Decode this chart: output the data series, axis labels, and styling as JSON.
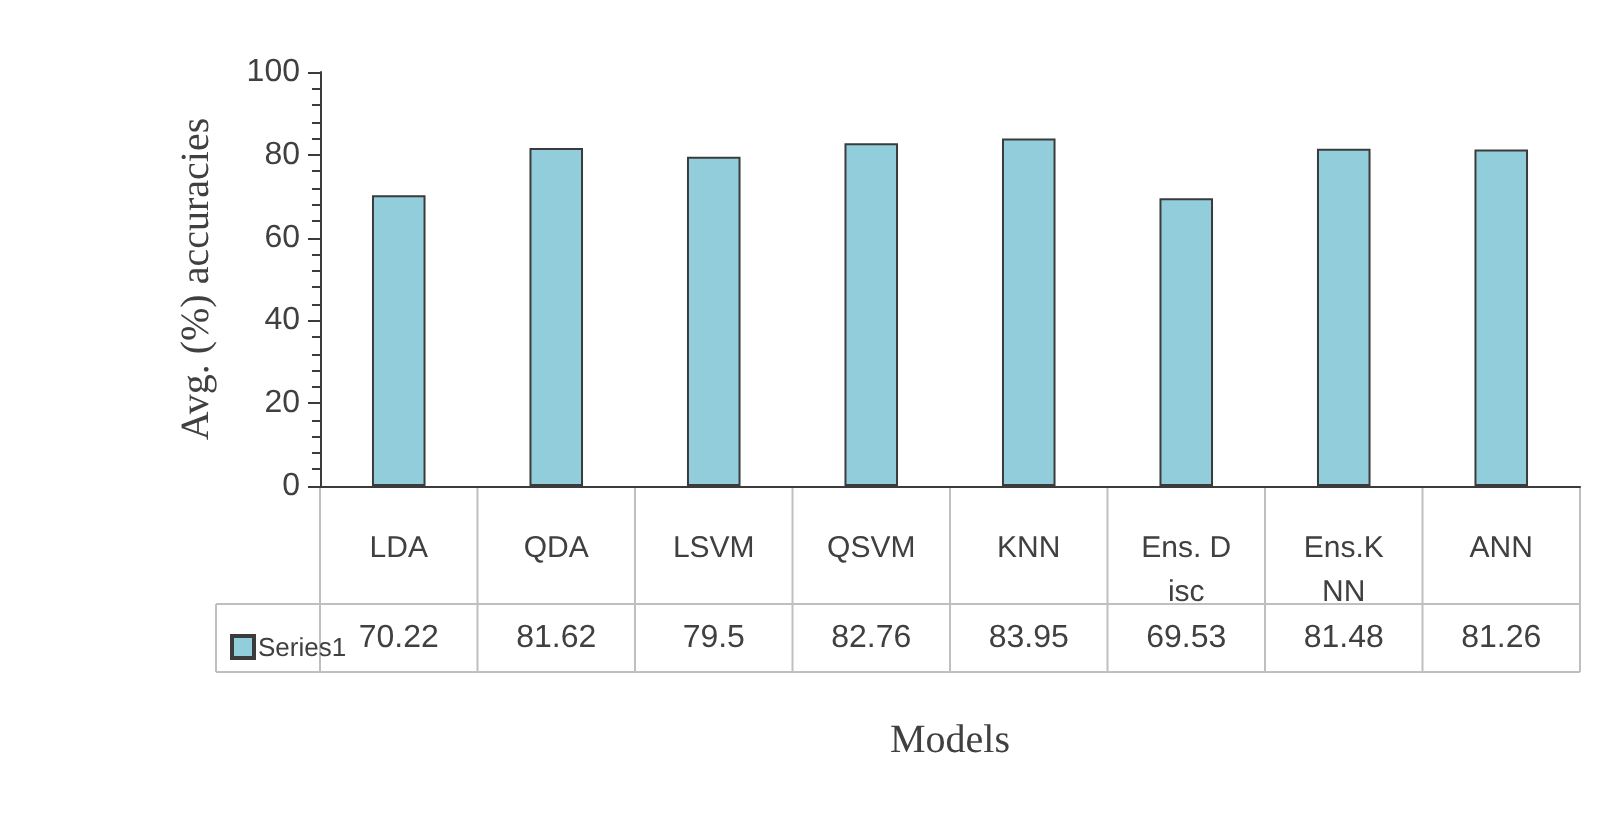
{
  "chart_data": {
    "type": "bar",
    "xlabel": "Models",
    "ylabel": "Avg. (%) accuracies",
    "categories": [
      "LDA",
      "QDA",
      "LSVM",
      "QSVM",
      "KNN",
      "Ens. Disc",
      "Ens.KNN",
      "ANN"
    ],
    "series": [
      {
        "name": "Series1",
        "color": "#92cddc",
        "values": [
          70.22,
          81.62,
          79.5,
          82.76,
          83.95,
          69.53,
          81.48,
          81.26
        ]
      }
    ],
    "ylim": [
      0,
      100
    ],
    "yticks": [
      0,
      20,
      40,
      60,
      80,
      100
    ],
    "grid": false,
    "legend": "bottom left",
    "data_labels": true
  }
}
